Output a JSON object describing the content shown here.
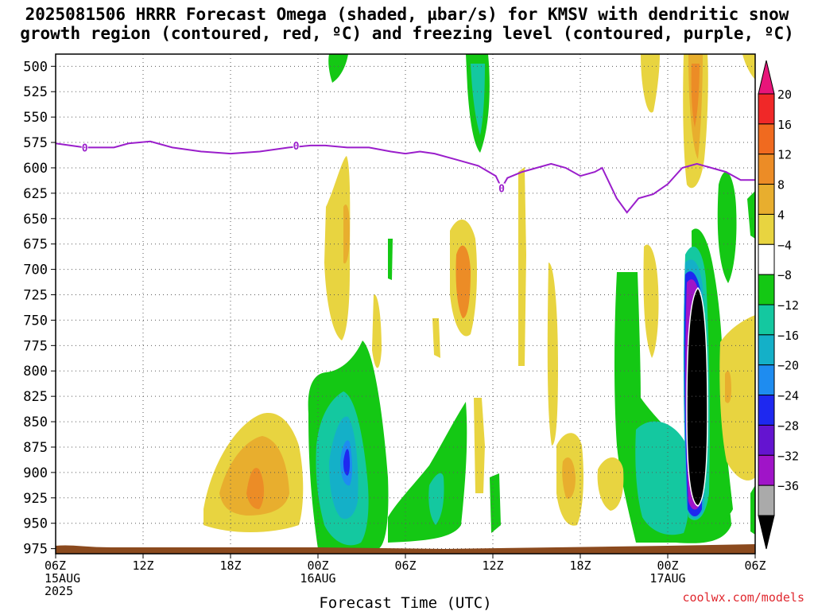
{
  "title": {
    "line1": "2025081506 HRRR Forecast Omega (shaded, µbar/s) for KMSV with dendritic snow",
    "line2": "growth region (contoured, red, ºC) and freezing level (contoured, purple, ºC)"
  },
  "credit": "coolwx.com/models",
  "colors": {
    "freezing_line": "#9a1ecb",
    "ground": "#8b4a1e",
    "grid": "#5a5a5a"
  },
  "chart_data": {
    "type": "heatmap",
    "xlabel": "Forecast Time (UTC)",
    "ylabel": "",
    "x_unit": "hours from 2025-08-15 06Z",
    "xlim": [
      0,
      48
    ],
    "ylim": [
      980,
      488
    ],
    "x_ticks": [
      {
        "hour": 0,
        "lines": [
          "06Z",
          "15AUG",
          "2025"
        ]
      },
      {
        "hour": 6,
        "lines": [
          "12Z"
        ]
      },
      {
        "hour": 12,
        "lines": [
          "18Z"
        ]
      },
      {
        "hour": 18,
        "lines": [
          "00Z",
          "16AUG"
        ]
      },
      {
        "hour": 24,
        "lines": [
          "06Z"
        ]
      },
      {
        "hour": 30,
        "lines": [
          "12Z"
        ]
      },
      {
        "hour": 36,
        "lines": [
          "18Z"
        ]
      },
      {
        "hour": 42,
        "lines": [
          "00Z",
          "17AUG"
        ]
      },
      {
        "hour": 48,
        "lines": [
          "06Z"
        ]
      }
    ],
    "y_ticks": [
      500,
      525,
      550,
      575,
      600,
      625,
      650,
      675,
      700,
      725,
      750,
      775,
      800,
      825,
      850,
      875,
      900,
      925,
      950,
      975
    ],
    "colorbar": {
      "labels": [
        "20",
        "16",
        "12",
        "8",
        "4",
        "−4",
        "−8",
        "−12",
        "−16",
        "−20",
        "−24",
        "−28",
        "−32",
        "−36"
      ],
      "colors": [
        "#e8157a",
        "#f02828",
        "#f06a1f",
        "#ec8c26",
        "#e8ae2e",
        "#e8d440",
        "#ffffff",
        "#14c814",
        "#14c8a0",
        "#14b0c8",
        "#1e8cf0",
        "#1e28f0",
        "#6414d0",
        "#a014c8",
        "#aaaaaa",
        "#000000"
      ]
    },
    "freezing_level": {
      "label": "0",
      "points": [
        [
          0,
          576
        ],
        [
          2,
          580
        ],
        [
          4,
          580
        ],
        [
          5,
          576
        ],
        [
          6.5,
          574
        ],
        [
          8,
          580
        ],
        [
          10,
          584
        ],
        [
          12,
          586
        ],
        [
          14,
          584
        ],
        [
          16,
          580
        ],
        [
          17.5,
          578
        ],
        [
          18.5,
          578
        ],
        [
          20,
          580
        ],
        [
          21.5,
          580
        ],
        [
          23,
          584
        ],
        [
          24,
          586
        ],
        [
          25,
          584
        ],
        [
          26,
          586
        ],
        [
          27.5,
          592
        ],
        [
          29,
          598
        ],
        [
          30.2,
          608
        ],
        [
          30.6,
          620
        ],
        [
          31,
          610
        ],
        [
          32,
          604
        ],
        [
          33,
          600
        ],
        [
          34,
          596
        ],
        [
          35,
          600
        ],
        [
          36,
          608
        ],
        [
          37,
          604
        ],
        [
          37.5,
          600
        ],
        [
          38.5,
          630
        ],
        [
          39.2,
          644
        ],
        [
          40,
          630
        ],
        [
          41,
          626
        ],
        [
          42,
          616
        ],
        [
          43,
          600
        ],
        [
          44,
          596
        ],
        [
          45,
          600
        ],
        [
          46,
          604
        ],
        [
          47,
          612
        ],
        [
          48,
          612
        ]
      ],
      "labeled_at": [
        [
          2,
          580
        ],
        [
          16.5,
          578
        ],
        [
          30.6,
          620
        ]
      ]
    }
  }
}
